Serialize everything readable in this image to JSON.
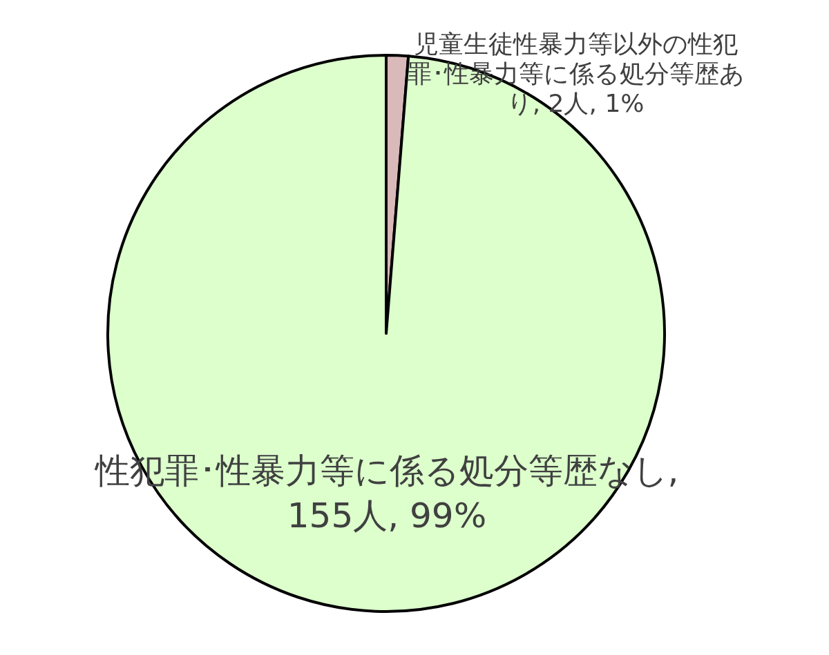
{
  "chart_data": {
    "type": "pie",
    "categories": [
      "児童生徒性暴力等以外の性犯罪･性暴力等に係る処分等歴あり",
      "性犯罪･性暴力等に係る処分等歴なし"
    ],
    "values": [
      2,
      155
    ],
    "colors": [
      "#d9b9b9",
      "#dcffcc"
    ],
    "value_labels": [
      ", 2人, 1%",
      ", 155人, 99%"
    ]
  }
}
